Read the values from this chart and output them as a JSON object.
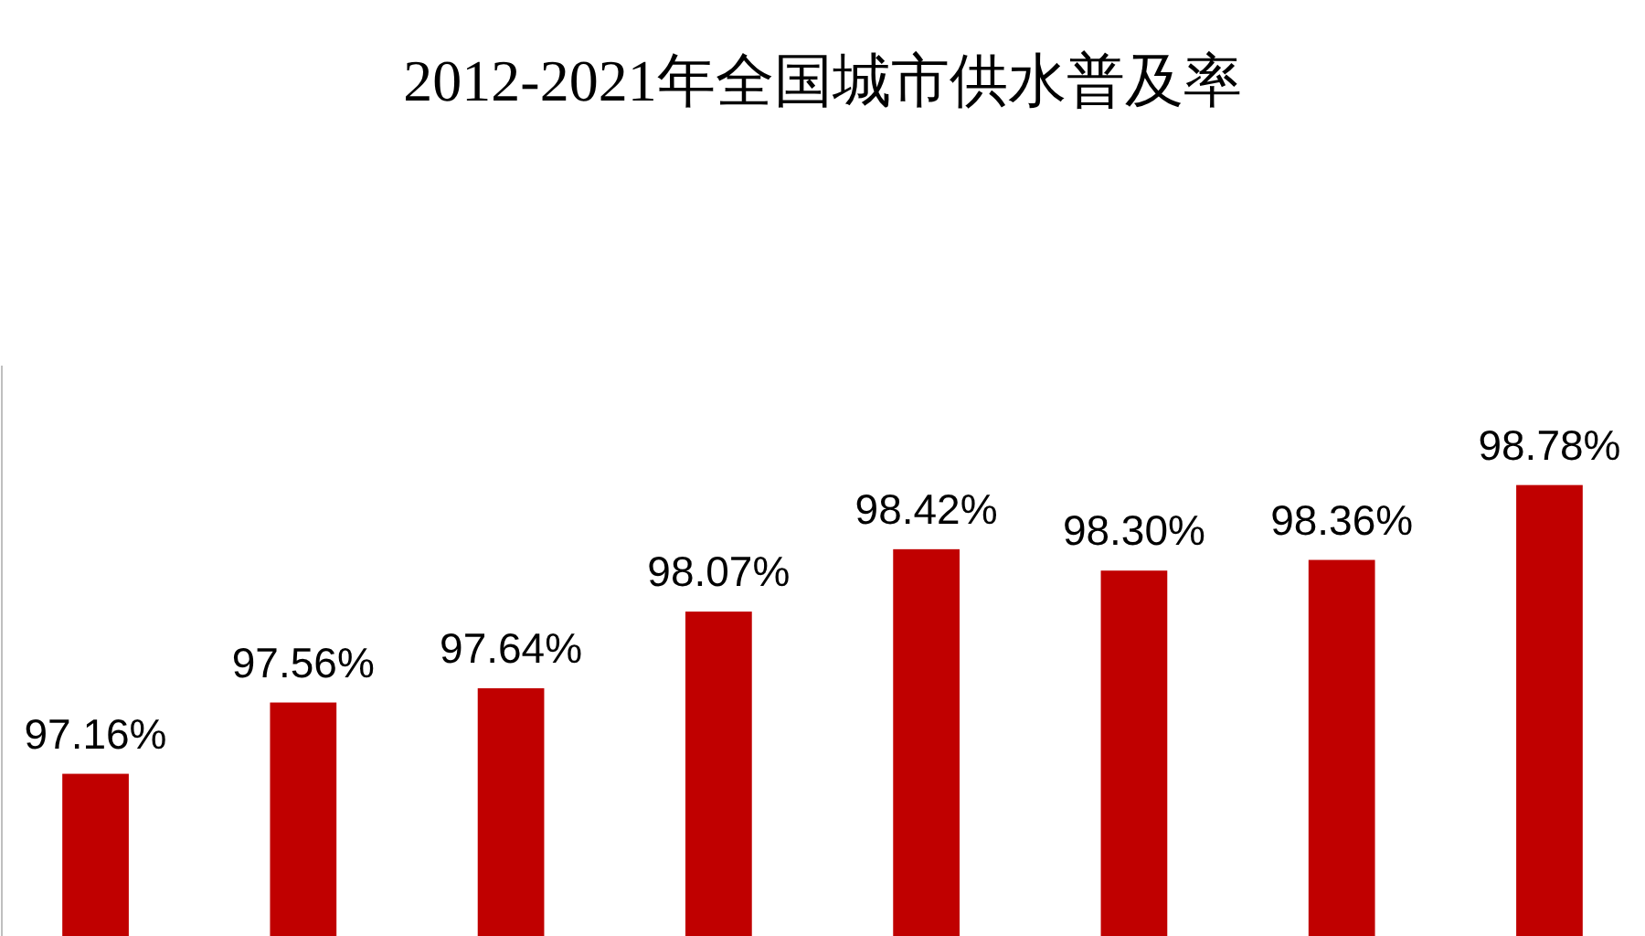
{
  "chart_data": {
    "type": "bar",
    "title": "2012-2021年全国城市供水普及率",
    "categories": [
      null,
      null,
      null,
      null,
      null,
      null,
      null,
      null
    ],
    "values": [
      97.16,
      97.56,
      97.64,
      98.07,
      98.42,
      98.3,
      98.36,
      98.78
    ],
    "value_labels": [
      "97.16%",
      "97.56%",
      "97.64%",
      "98.07%",
      "98.42%",
      "98.30%",
      "98.36%",
      "98.78%"
    ],
    "color": "#c00000",
    "ylim": [
      96.25,
      99.45
    ]
  }
}
